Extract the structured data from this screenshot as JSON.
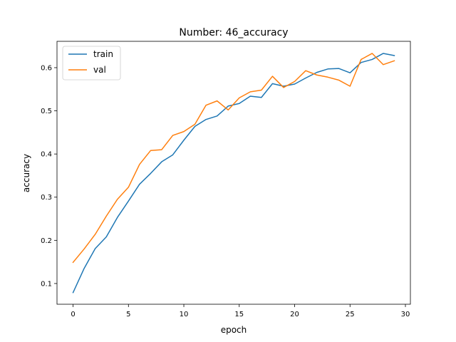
{
  "chart_data": {
    "type": "line",
    "title": "Number: 46_accuracy",
    "xlabel": "epoch",
    "ylabel": "accuracy",
    "xlim": [
      -1.45,
      30.45
    ],
    "ylim": [
      0.052,
      0.661
    ],
    "xticks": [
      0,
      5,
      10,
      15,
      20,
      25,
      30
    ],
    "yticks": [
      0.1,
      0.2,
      0.3,
      0.4,
      0.5,
      0.6
    ],
    "legend_position": "top-left",
    "grid": false,
    "series": [
      {
        "name": "train",
        "color": "#1f77b4",
        "x": [
          0,
          1,
          2,
          3,
          4,
          5,
          6,
          7,
          8,
          9,
          10,
          11,
          12,
          13,
          14,
          15,
          16,
          17,
          18,
          19,
          20,
          21,
          22,
          23,
          24,
          25,
          26,
          27,
          28,
          29
        ],
        "values": [
          0.079,
          0.135,
          0.181,
          0.208,
          0.253,
          0.291,
          0.33,
          0.355,
          0.382,
          0.398,
          0.432,
          0.464,
          0.48,
          0.488,
          0.511,
          0.517,
          0.534,
          0.531,
          0.563,
          0.557,
          0.562,
          0.576,
          0.589,
          0.597,
          0.598,
          0.588,
          0.612,
          0.619,
          0.633,
          0.628
        ]
      },
      {
        "name": "val",
        "color": "#ff7f0e",
        "x": [
          0,
          1,
          2,
          3,
          4,
          5,
          6,
          7,
          8,
          9,
          10,
          11,
          12,
          13,
          14,
          15,
          16,
          17,
          18,
          19,
          20,
          21,
          22,
          23,
          24,
          25,
          26,
          27,
          28,
          29
        ],
        "values": [
          0.149,
          0.18,
          0.214,
          0.256,
          0.295,
          0.323,
          0.376,
          0.408,
          0.41,
          0.443,
          0.452,
          0.469,
          0.513,
          0.523,
          0.502,
          0.53,
          0.544,
          0.548,
          0.58,
          0.554,
          0.568,
          0.593,
          0.583,
          0.578,
          0.571,
          0.557,
          0.619,
          0.633,
          0.607,
          0.616
        ]
      }
    ]
  }
}
